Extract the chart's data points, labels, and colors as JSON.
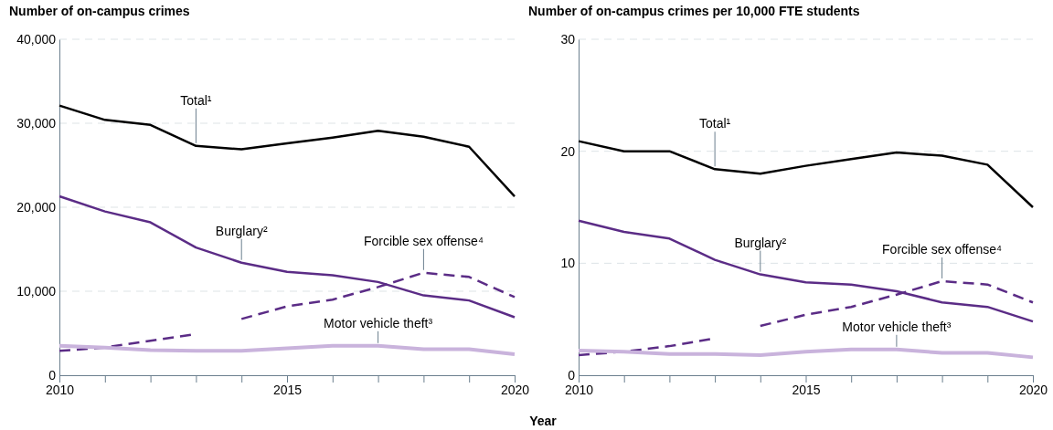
{
  "chart_data": [
    {
      "type": "line",
      "title": "Number of on-campus crimes",
      "xlabel": "Year",
      "x": [
        2010,
        2011,
        2012,
        2013,
        2014,
        2015,
        2016,
        2017,
        2018,
        2019,
        2020
      ],
      "xlim": [
        2010,
        2020
      ],
      "xticks": [
        2010,
        {
          "value": 2011,
          "label": null
        },
        {
          "value": 2012,
          "label": null
        },
        {
          "value": 2013,
          "label": null
        },
        {
          "value": 2014,
          "label": null
        },
        2015,
        {
          "value": 2016,
          "label": null
        },
        {
          "value": 2017,
          "label": null
        },
        {
          "value": 2018,
          "label": null
        },
        {
          "value": 2019,
          "label": null
        },
        2020
      ],
      "ylim": [
        0,
        40000
      ],
      "yticks": [
        0,
        {
          "value": 10000,
          "label": "10,000"
        },
        {
          "value": 20000,
          "label": "20,000"
        },
        {
          "value": 30000,
          "label": "30,000"
        },
        {
          "value": 40000,
          "label": "40,000"
        }
      ],
      "grid": "y",
      "legend": false,
      "series": [
        {
          "name": "Total¹",
          "color": "#000000",
          "values": [
            32100,
            30400,
            29800,
            27300,
            26900,
            27600,
            28300,
            29100,
            28400,
            27200,
            21300
          ]
        },
        {
          "name": "Burglary²",
          "color": "#5b2c86",
          "values": [
            21300,
            19500,
            18200,
            15200,
            13400,
            12300,
            11900,
            11100,
            9500,
            8900,
            6900
          ]
        },
        {
          "name": "Forcible sex offense⁴",
          "color": "#5b2c86",
          "line_style": "dashed",
          "x": [
            2010,
            2011,
            2012,
            2013,
            2013.5,
            2014,
            2015,
            2016,
            2017,
            2018,
            2019,
            2020
          ],
          "values": [
            2900,
            3300,
            4100,
            4900,
            null,
            6700,
            8200,
            9000,
            10500,
            12200,
            11700,
            9300
          ]
        },
        {
          "name": "Motor vehicle theft³",
          "color": "#c9b3dc",
          "values": [
            3500,
            3300,
            3000,
            2900,
            2900,
            3200,
            3500,
            3500,
            3100,
            3100,
            2500
          ]
        }
      ]
    },
    {
      "type": "line",
      "title": "Number of on-campus crimes per 10,000 FTE students",
      "x": [
        2010,
        2011,
        2012,
        2013,
        2014,
        2015,
        2016,
        2017,
        2018,
        2019,
        2020
      ],
      "xlim": [
        2010,
        2020
      ],
      "xticks": [
        2010,
        {
          "value": 2011,
          "label": null
        },
        {
          "value": 2012,
          "label": null
        },
        {
          "value": 2013,
          "label": null
        },
        {
          "value": 2014,
          "label": null
        },
        2015,
        {
          "value": 2016,
          "label": null
        },
        {
          "value": 2017,
          "label": null
        },
        {
          "value": 2018,
          "label": null
        },
        {
          "value": 2019,
          "label": null
        },
        2020
      ],
      "ylim": [
        0,
        30
      ],
      "yticks": [
        0,
        10,
        20,
        30
      ],
      "grid": "y",
      "legend": false,
      "series": [
        {
          "name": "Total¹",
          "color": "#000000",
          "values": [
            20.9,
            20.0,
            20.0,
            18.4,
            18.0,
            18.7,
            19.3,
            19.9,
            19.6,
            18.8,
            15.0
          ]
        },
        {
          "name": "Burglary²",
          "color": "#5b2c86",
          "values": [
            13.8,
            12.8,
            12.2,
            10.3,
            9.0,
            8.3,
            8.1,
            7.5,
            6.5,
            6.1,
            4.8
          ]
        },
        {
          "name": "Forcible sex offense⁴",
          "color": "#5b2c86",
          "line_style": "dashed",
          "x": [
            2010,
            2011,
            2012,
            2013,
            2013.5,
            2014,
            2015,
            2016,
            2017,
            2018,
            2019,
            2020
          ],
          "values": [
            1.8,
            2.1,
            2.6,
            3.3,
            null,
            4.4,
            5.4,
            6.1,
            7.2,
            8.4,
            8.1,
            6.5
          ]
        },
        {
          "name": "Motor vehicle theft³",
          "color": "#c9b3dc",
          "values": [
            2.2,
            2.1,
            1.9,
            1.9,
            1.8,
            2.1,
            2.3,
            2.3,
            2.0,
            2.0,
            1.6
          ]
        }
      ]
    }
  ]
}
